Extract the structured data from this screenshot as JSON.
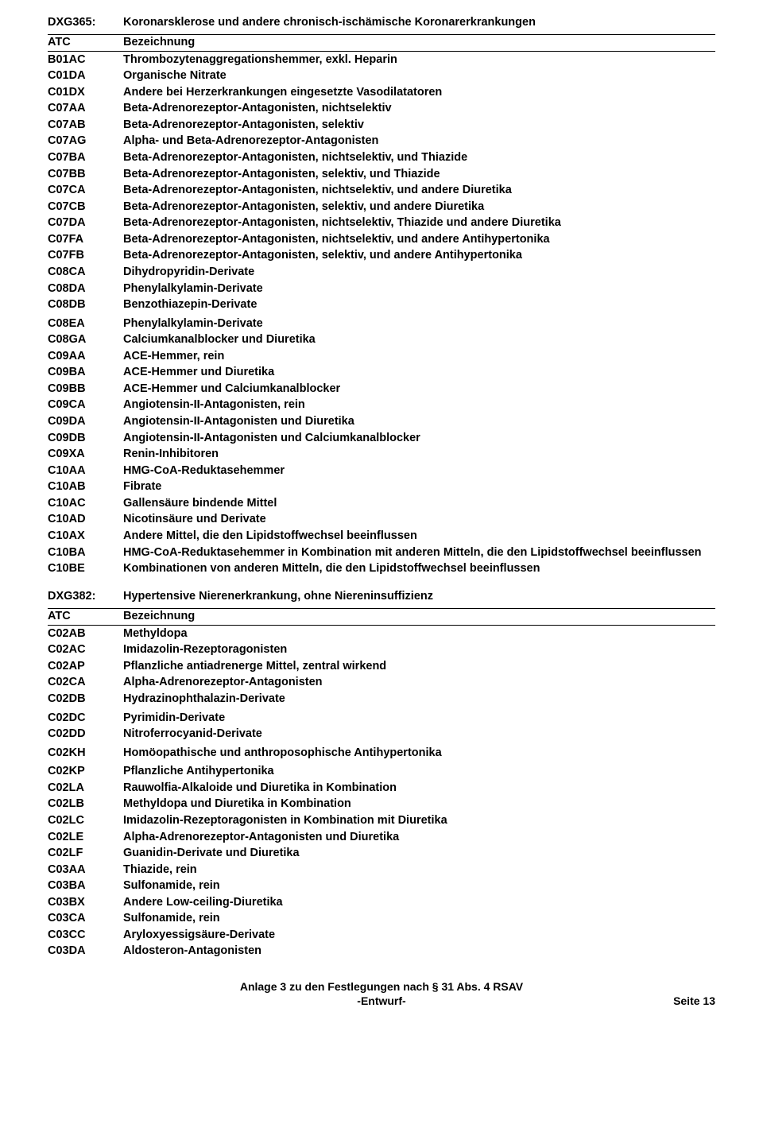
{
  "section1": {
    "code": "DXG365:",
    "title": "Koronarsklerose und andere chronisch-ischämische Koronarerkrankungen",
    "header_left": "ATC",
    "header_right": "Bezeichnung",
    "rows": [
      {
        "code": "B01AC",
        "desc": "Thrombozytenaggregationshemmer, exkl. Heparin"
      },
      {
        "code": "C01DA",
        "desc": "Organische Nitrate"
      },
      {
        "code": "C01DX",
        "desc": "Andere bei Herzerkrankungen eingesetzte Vasodilatatoren"
      },
      {
        "code": "C07AA",
        "desc": "Beta-Adrenorezeptor-Antagonisten, nichtselektiv"
      },
      {
        "code": "C07AB",
        "desc": "Beta-Adrenorezeptor-Antagonisten, selektiv"
      },
      {
        "code": "C07AG",
        "desc": "Alpha- und Beta-Adrenorezeptor-Antagonisten"
      },
      {
        "code": "C07BA",
        "desc": "Beta-Adrenorezeptor-Antagonisten, nichtselektiv, und Thiazide"
      },
      {
        "code": "C07BB",
        "desc": "Beta-Adrenorezeptor-Antagonisten, selektiv, und Thiazide"
      },
      {
        "code": "C07CA",
        "desc": "Beta-Adrenorezeptor-Antagonisten, nichtselektiv, und andere Diuretika"
      },
      {
        "code": "C07CB",
        "desc": "Beta-Adrenorezeptor-Antagonisten, selektiv, und andere Diuretika"
      },
      {
        "code": "C07DA",
        "desc": "Beta-Adrenorezeptor-Antagonisten, nichtselektiv, Thiazide und andere Diuretika"
      },
      {
        "code": "C07FA",
        "desc": "Beta-Adrenorezeptor-Antagonisten, nichtselektiv, und andere Antihypertonika"
      },
      {
        "code": "C07FB",
        "desc": "Beta-Adrenorezeptor-Antagonisten, selektiv, und andere Antihypertonika"
      },
      {
        "code": "C08CA",
        "desc": "Dihydropyridin-Derivate"
      },
      {
        "code": "C08DA",
        "desc": "Phenylalkylamin-Derivate"
      },
      {
        "code": "C08DB",
        "desc": "Benzothiazepin-Derivate",
        "gap": true
      },
      {
        "code": "C08EA",
        "desc": "Phenylalkylamin-Derivate"
      },
      {
        "code": "C08GA",
        "desc": "Calciumkanalblocker und Diuretika"
      },
      {
        "code": "C09AA",
        "desc": "ACE-Hemmer, rein"
      },
      {
        "code": "C09BA",
        "desc": "ACE-Hemmer und Diuretika"
      },
      {
        "code": "C09BB",
        "desc": "ACE-Hemmer und Calciumkanalblocker"
      },
      {
        "code": "C09CA",
        "desc": "Angiotensin-II-Antagonisten, rein"
      },
      {
        "code": "C09DA",
        "desc": "Angiotensin-II-Antagonisten und Diuretika"
      },
      {
        "code": "C09DB",
        "desc": "Angiotensin-II-Antagonisten und Calciumkanalblocker"
      },
      {
        "code": "C09XA",
        "desc": "Renin-Inhibitoren"
      },
      {
        "code": "C10AA",
        "desc": "HMG-CoA-Reduktasehemmer"
      },
      {
        "code": "C10AB",
        "desc": "Fibrate"
      },
      {
        "code": "C10AC",
        "desc": "Gallensäure bindende Mittel"
      },
      {
        "code": "C10AD",
        "desc": "Nicotinsäure und Derivate"
      },
      {
        "code": "C10AX",
        "desc": "Andere Mittel, die den Lipidstoffwechsel beeinflussen"
      },
      {
        "code": "C10BA",
        "desc": "HMG-CoA-Reduktasehemmer in Kombination mit anderen Mitteln, die den Lipidstoffwechsel beeinflussen"
      },
      {
        "code": "C10BE",
        "desc": "Kombinationen von anderen Mitteln, die den Lipidstoffwechsel beeinflussen"
      }
    ]
  },
  "section2": {
    "code": "DXG382:",
    "title": "Hypertensive Nierenerkrankung, ohne Niereninsuffizienz",
    "header_left": "ATC",
    "header_right": "Bezeichnung",
    "rows": [
      {
        "code": "C02AB",
        "desc": "Methyldopa"
      },
      {
        "code": "C02AC",
        "desc": "Imidazolin-Rezeptoragonisten"
      },
      {
        "code": "C02AP",
        "desc": "Pflanzliche antiadrenerge Mittel, zentral wirkend"
      },
      {
        "code": "C02CA",
        "desc": "Alpha-Adrenorezeptor-Antagonisten"
      },
      {
        "code": "C02DB",
        "desc": "Hydrazinophthalazin-Derivate",
        "gap": true
      },
      {
        "code": "C02DC",
        "desc": "Pyrimidin-Derivate"
      },
      {
        "code": "C02DD",
        "desc": "Nitroferrocyanid-Derivate",
        "gap": true
      },
      {
        "code": "C02KH",
        "desc": "Homöopathische und anthroposophische Antihypertonika",
        "gap": true
      },
      {
        "code": "C02KP",
        "desc": "Pflanzliche Antihypertonika"
      },
      {
        "code": "C02LA",
        "desc": "Rauwolfia-Alkaloide und Diuretika in Kombination"
      },
      {
        "code": "C02LB",
        "desc": "Methyldopa und Diuretika in Kombination"
      },
      {
        "code": "C02LC",
        "desc": "Imidazolin-Rezeptoragonisten in Kombination mit Diuretika"
      },
      {
        "code": "C02LE",
        "desc": "Alpha-Adrenorezeptor-Antagonisten und Diuretika"
      },
      {
        "code": "C02LF",
        "desc": "Guanidin-Derivate und Diuretika"
      },
      {
        "code": "C03AA",
        "desc": "Thiazide, rein"
      },
      {
        "code": "C03BA",
        "desc": "Sulfonamide, rein"
      },
      {
        "code": "C03BX",
        "desc": "Andere Low-ceiling-Diuretika"
      },
      {
        "code": "C03CA",
        "desc": "Sulfonamide, rein"
      },
      {
        "code": "C03CC",
        "desc": "Aryloxyessigsäure-Derivate"
      },
      {
        "code": "C03DA",
        "desc": "Aldosteron-Antagonisten"
      }
    ]
  },
  "footer": {
    "line1": "Anlage 3 zu den Festlegungen nach § 31 Abs. 4 RSAV",
    "line2": "-Entwurf-",
    "page": "Seite 13"
  }
}
